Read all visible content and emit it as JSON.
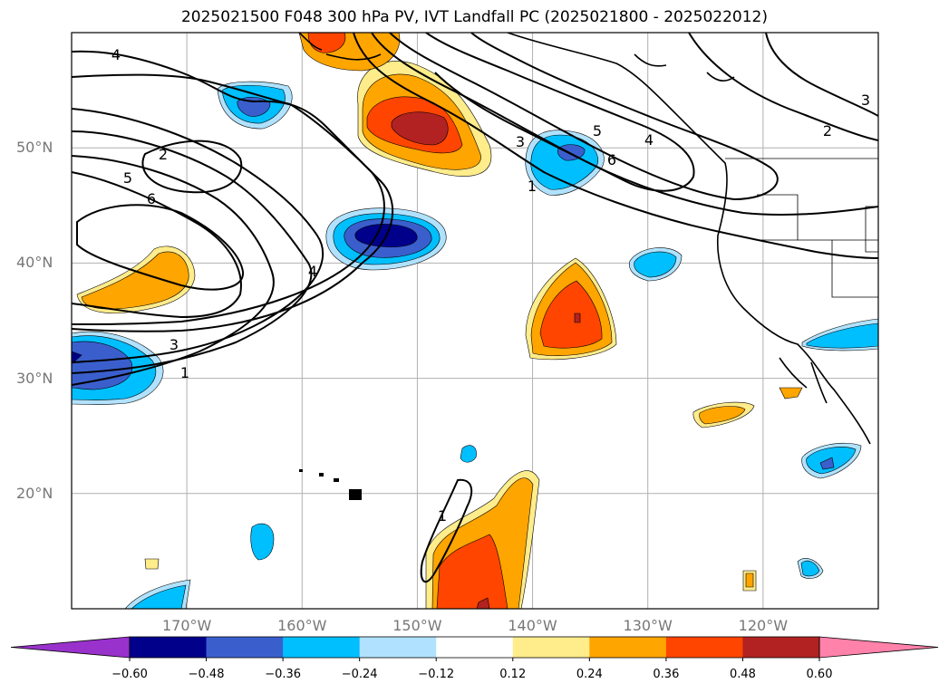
{
  "title": "2025021500 F048 300 hPa PV, IVT Landfall PC (2025021800 - 2025022012)",
  "map": {
    "extent": {
      "lon_min": -180,
      "lon_max": -110,
      "lat_min": 10,
      "lat_max": 60
    },
    "lat_ticks": [
      {
        "value": 50,
        "label": "50°N"
      },
      {
        "value": 40,
        "label": "40°N"
      },
      {
        "value": 30,
        "label": "30°N"
      },
      {
        "value": 20,
        "label": "20°N"
      }
    ],
    "lon_ticks": [
      {
        "value": -170,
        "label": "170°W"
      },
      {
        "value": -160,
        "label": "160°W"
      },
      {
        "value": -150,
        "label": "150°W"
      },
      {
        "value": -140,
        "label": "140°W"
      },
      {
        "value": -130,
        "label": "130°W"
      },
      {
        "value": -120,
        "label": "120°W"
      }
    ],
    "contour_labels": [
      "4",
      "2",
      "5",
      "6",
      "4",
      "3",
      "1",
      "1",
      "3",
      "5",
      "4",
      "6",
      "2",
      "3",
      "1"
    ]
  },
  "colorbar": {
    "ticks": [
      "−0.60",
      "−0.48",
      "−0.36",
      "−0.24",
      "−0.12",
      "0.12",
      "0.24",
      "0.36",
      "0.48",
      "0.60"
    ],
    "colors": [
      "#9932cc",
      "#00008b",
      "#3a5fcd",
      "#00bfff",
      "#b0e2ff",
      "#ffffff",
      "#ffec8b",
      "#ffa500",
      "#ff4500",
      "#b22222",
      "#ff82ab"
    ]
  }
}
